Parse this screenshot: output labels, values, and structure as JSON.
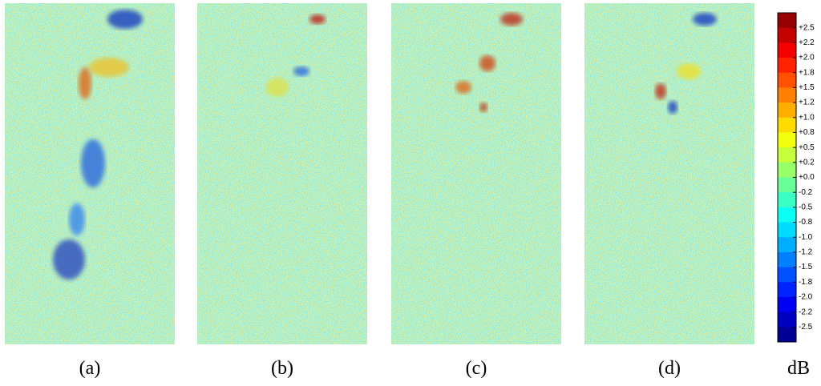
{
  "panels": [
    {
      "label": "(a)"
    },
    {
      "label": "(b)"
    },
    {
      "label": "(c)"
    },
    {
      "label": "(d)"
    }
  ],
  "colorbar": {
    "unit": "dB",
    "ticks": [
      "+2.5",
      "+2.2",
      "+2.0",
      "+1.8",
      "+1.5",
      "+1.2",
      "+1.0",
      "+0.8",
      "+0.5",
      "+0.2",
      "+0.0",
      "-0.2",
      "-0.5",
      "-0.8",
      "-1.0",
      "-1.2",
      "-1.5",
      "-1.8",
      "-2.0",
      "-2.2",
      "-2.5"
    ]
  }
}
